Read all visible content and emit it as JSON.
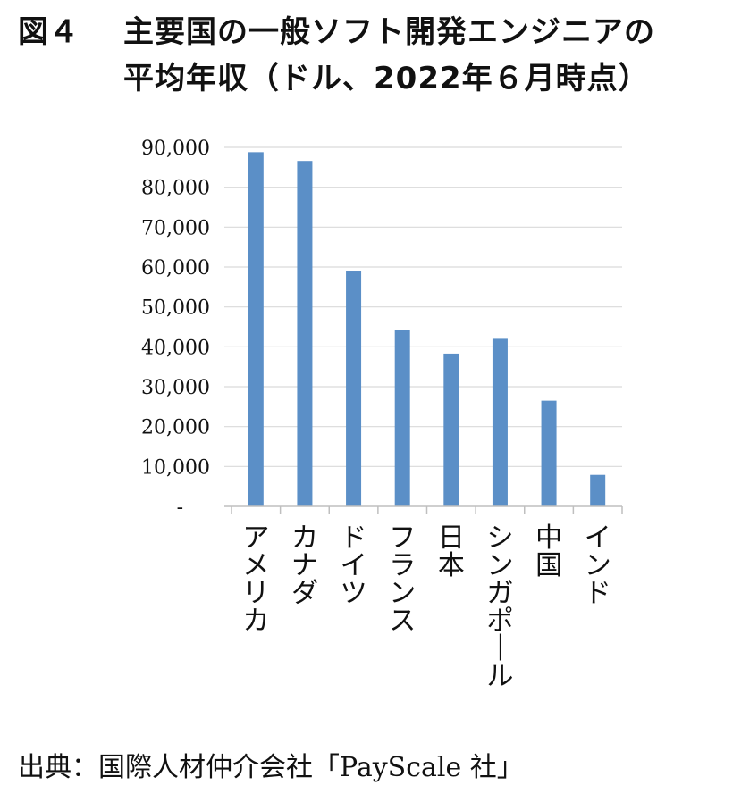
{
  "title": {
    "figure_label": "図４",
    "line1": "主要国の一般ソフト開発エンジニアの",
    "line2": "平均年収（ドル、2022年６月時点）"
  },
  "source": "出典：国際人材仲介会社「PayScale 社」",
  "chart_data": {
    "type": "bar",
    "categories": [
      "アメリカ",
      "カナダ",
      "ドイツ",
      "フランス",
      "日本",
      "シンガポール",
      "中国",
      "インド"
    ],
    "values": [
      88800,
      86600,
      59100,
      44300,
      38300,
      42000,
      26500,
      7900
    ],
    "ylim": [
      0,
      90000
    ],
    "yticks": [
      "-",
      "10,000",
      "20,000",
      "30,000",
      "40,000",
      "50,000",
      "60,000",
      "70,000",
      "80,000",
      "90,000"
    ],
    "grid": true,
    "bar_color": "#5b8fc7",
    "grid_color": "#d9d9d9"
  }
}
